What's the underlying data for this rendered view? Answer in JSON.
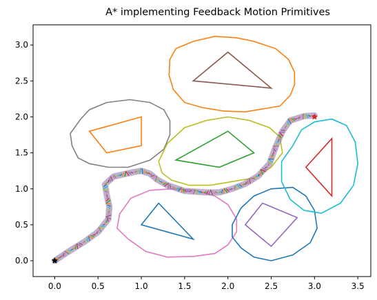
{
  "chart_data": {
    "type": "line",
    "title": "A* implementing Feedback Motion Primitives",
    "xlabel": "",
    "ylabel": "",
    "xlim": [
      -0.25,
      3.65
    ],
    "ylim": [
      -0.22,
      3.28
    ],
    "xticks": [
      0.0,
      0.5,
      1.0,
      1.5,
      2.0,
      2.5,
      3.0,
      3.5
    ],
    "yticks": [
      0.0,
      0.5,
      1.0,
      1.5,
      2.0,
      2.5,
      3.0
    ],
    "xtick_labels": [
      "0.0",
      "0.5",
      "1.0",
      "1.5",
      "2.0",
      "2.5",
      "3.0",
      "3.5"
    ],
    "ytick_labels": [
      "0.0",
      "0.5",
      "1.0",
      "1.5",
      "2.0",
      "2.5",
      "3.0"
    ],
    "grid": false,
    "obstacles": [
      {
        "color": "#ff7f0e",
        "points": [
          [
            1.6,
            2.5
          ],
          [
            2.5,
            2.4
          ],
          [
            2.0,
            2.9
          ]
        ],
        "boundary_color": "#ff7f0e",
        "boundary": [
          [
            1.4,
            2.95
          ],
          [
            1.6,
            3.05
          ],
          [
            1.85,
            3.12
          ],
          [
            2.1,
            3.1
          ],
          [
            2.3,
            3.05
          ],
          [
            2.55,
            2.95
          ],
          [
            2.7,
            2.8
          ],
          [
            2.77,
            2.62
          ],
          [
            2.77,
            2.45
          ],
          [
            2.72,
            2.3
          ],
          [
            2.6,
            2.15
          ],
          [
            2.45,
            2.12
          ],
          [
            2.2,
            2.07
          ],
          [
            1.95,
            2.08
          ],
          [
            1.7,
            2.13
          ],
          [
            1.5,
            2.2
          ],
          [
            1.37,
            2.38
          ],
          [
            1.32,
            2.58
          ],
          [
            1.33,
            2.8
          ]
        ]
      },
      {
        "color": "#ff7f0e",
        "points": [
          [
            0.4,
            1.8
          ],
          [
            1.0,
            2.0
          ],
          [
            1.0,
            1.6
          ],
          [
            0.6,
            1.5
          ]
        ],
        "boundary_color": "#7f7f7f",
        "boundary": [
          [
            0.18,
            1.77
          ],
          [
            0.3,
            1.97
          ],
          [
            0.4,
            2.1
          ],
          [
            0.6,
            2.2
          ],
          [
            0.87,
            2.24
          ],
          [
            1.1,
            2.2
          ],
          [
            1.26,
            2.1
          ],
          [
            1.33,
            1.95
          ],
          [
            1.33,
            1.75
          ],
          [
            1.26,
            1.55
          ],
          [
            1.1,
            1.4
          ],
          [
            0.85,
            1.3
          ],
          [
            0.62,
            1.3
          ],
          [
            0.4,
            1.35
          ],
          [
            0.27,
            1.43
          ],
          [
            0.2,
            1.6
          ]
        ]
      },
      {
        "color": "#2ca02c",
        "points": [
          [
            1.4,
            1.4
          ],
          [
            2.0,
            1.8
          ],
          [
            2.3,
            1.5
          ],
          [
            1.9,
            1.3
          ]
        ],
        "boundary_color": "#bcbd22",
        "boundary": [
          [
            1.2,
            1.38
          ],
          [
            1.3,
            1.63
          ],
          [
            1.5,
            1.85
          ],
          [
            1.75,
            1.95
          ],
          [
            2.0,
            2.0
          ],
          [
            2.25,
            1.95
          ],
          [
            2.48,
            1.85
          ],
          [
            2.6,
            1.72
          ],
          [
            2.63,
            1.5
          ],
          [
            2.5,
            1.3
          ],
          [
            2.3,
            1.15
          ],
          [
            2.05,
            1.1
          ],
          [
            1.8,
            1.05
          ],
          [
            1.55,
            1.05
          ],
          [
            1.35,
            1.12
          ],
          [
            1.24,
            1.22
          ]
        ]
      },
      {
        "color": "#1f77b4",
        "points": [
          [
            1.0,
            0.5
          ],
          [
            1.2,
            0.8
          ],
          [
            1.6,
            0.3
          ]
        ],
        "boundary_color": "#e377c2",
        "boundary": [
          [
            0.75,
            0.65
          ],
          [
            0.88,
            0.87
          ],
          [
            1.1,
            0.98
          ],
          [
            1.35,
            1.0
          ],
          [
            1.62,
            0.98
          ],
          [
            1.85,
            0.9
          ],
          [
            2.0,
            0.78
          ],
          [
            2.1,
            0.58
          ],
          [
            2.1,
            0.4
          ],
          [
            2.0,
            0.22
          ],
          [
            1.85,
            0.1
          ],
          [
            1.6,
            0.06
          ],
          [
            1.3,
            0.05
          ],
          [
            1.05,
            0.13
          ],
          [
            0.85,
            0.3
          ],
          [
            0.72,
            0.45
          ]
        ]
      },
      {
        "color": "#9467bd",
        "points": [
          [
            2.2,
            0.5
          ],
          [
            2.4,
            0.8
          ],
          [
            2.8,
            0.6
          ],
          [
            2.5,
            0.2
          ]
        ],
        "boundary_color": "#1f77b4",
        "boundary": [
          [
            2.05,
            0.5
          ],
          [
            2.15,
            0.73
          ],
          [
            2.3,
            0.9
          ],
          [
            2.5,
            1.0
          ],
          [
            2.75,
            1.02
          ],
          [
            2.9,
            0.9
          ],
          [
            3.0,
            0.7
          ],
          [
            3.03,
            0.45
          ],
          [
            2.95,
            0.25
          ],
          [
            2.75,
            0.08
          ],
          [
            2.5,
            0.0
          ],
          [
            2.3,
            0.05
          ],
          [
            2.15,
            0.18
          ],
          [
            2.05,
            0.33
          ]
        ]
      },
      {
        "color": "#d62728",
        "points": [
          [
            2.9,
            1.3
          ],
          [
            3.2,
            1.7
          ],
          [
            3.2,
            0.9
          ]
        ],
        "boundary_color": "#17becf",
        "boundary": [
          [
            2.75,
            1.6
          ],
          [
            2.85,
            1.82
          ],
          [
            3.0,
            1.93
          ],
          [
            3.2,
            1.97
          ],
          [
            3.37,
            1.88
          ],
          [
            3.47,
            1.65
          ],
          [
            3.5,
            1.35
          ],
          [
            3.45,
            1.05
          ],
          [
            3.3,
            0.8
          ],
          [
            3.08,
            0.66
          ],
          [
            2.88,
            0.7
          ],
          [
            2.72,
            0.85
          ],
          [
            2.62,
            1.1
          ],
          [
            2.62,
            1.38
          ]
        ]
      }
    ],
    "triangle_outline_color": "#8c564b",
    "path": [
      [
        0.0,
        0.0
      ],
      [
        0.15,
        0.12
      ],
      [
        0.35,
        0.27
      ],
      [
        0.5,
        0.4
      ],
      [
        0.62,
        0.58
      ],
      [
        0.63,
        0.75
      ],
      [
        0.6,
        0.92
      ],
      [
        0.58,
        1.06
      ],
      [
        0.68,
        1.17
      ],
      [
        0.9,
        1.23
      ],
      [
        1.0,
        1.25
      ],
      [
        1.1,
        1.21
      ],
      [
        1.18,
        1.13
      ],
      [
        1.3,
        1.05
      ],
      [
        1.5,
        0.97
      ],
      [
        1.75,
        0.95
      ],
      [
        1.9,
        0.95
      ],
      [
        2.05,
        1.0
      ],
      [
        2.2,
        1.07
      ],
      [
        2.35,
        1.18
      ],
      [
        2.48,
        1.35
      ],
      [
        2.55,
        1.58
      ],
      [
        2.63,
        1.8
      ],
      [
        2.72,
        1.95
      ],
      [
        2.88,
        2.01
      ],
      [
        3.0,
        2.02
      ]
    ],
    "path_color": "#1f77b4",
    "start": {
      "x": 0.0,
      "y": 0.0,
      "color": "#000000"
    },
    "goal": {
      "x": 3.0,
      "y": 2.0,
      "color": "#d62728"
    }
  }
}
